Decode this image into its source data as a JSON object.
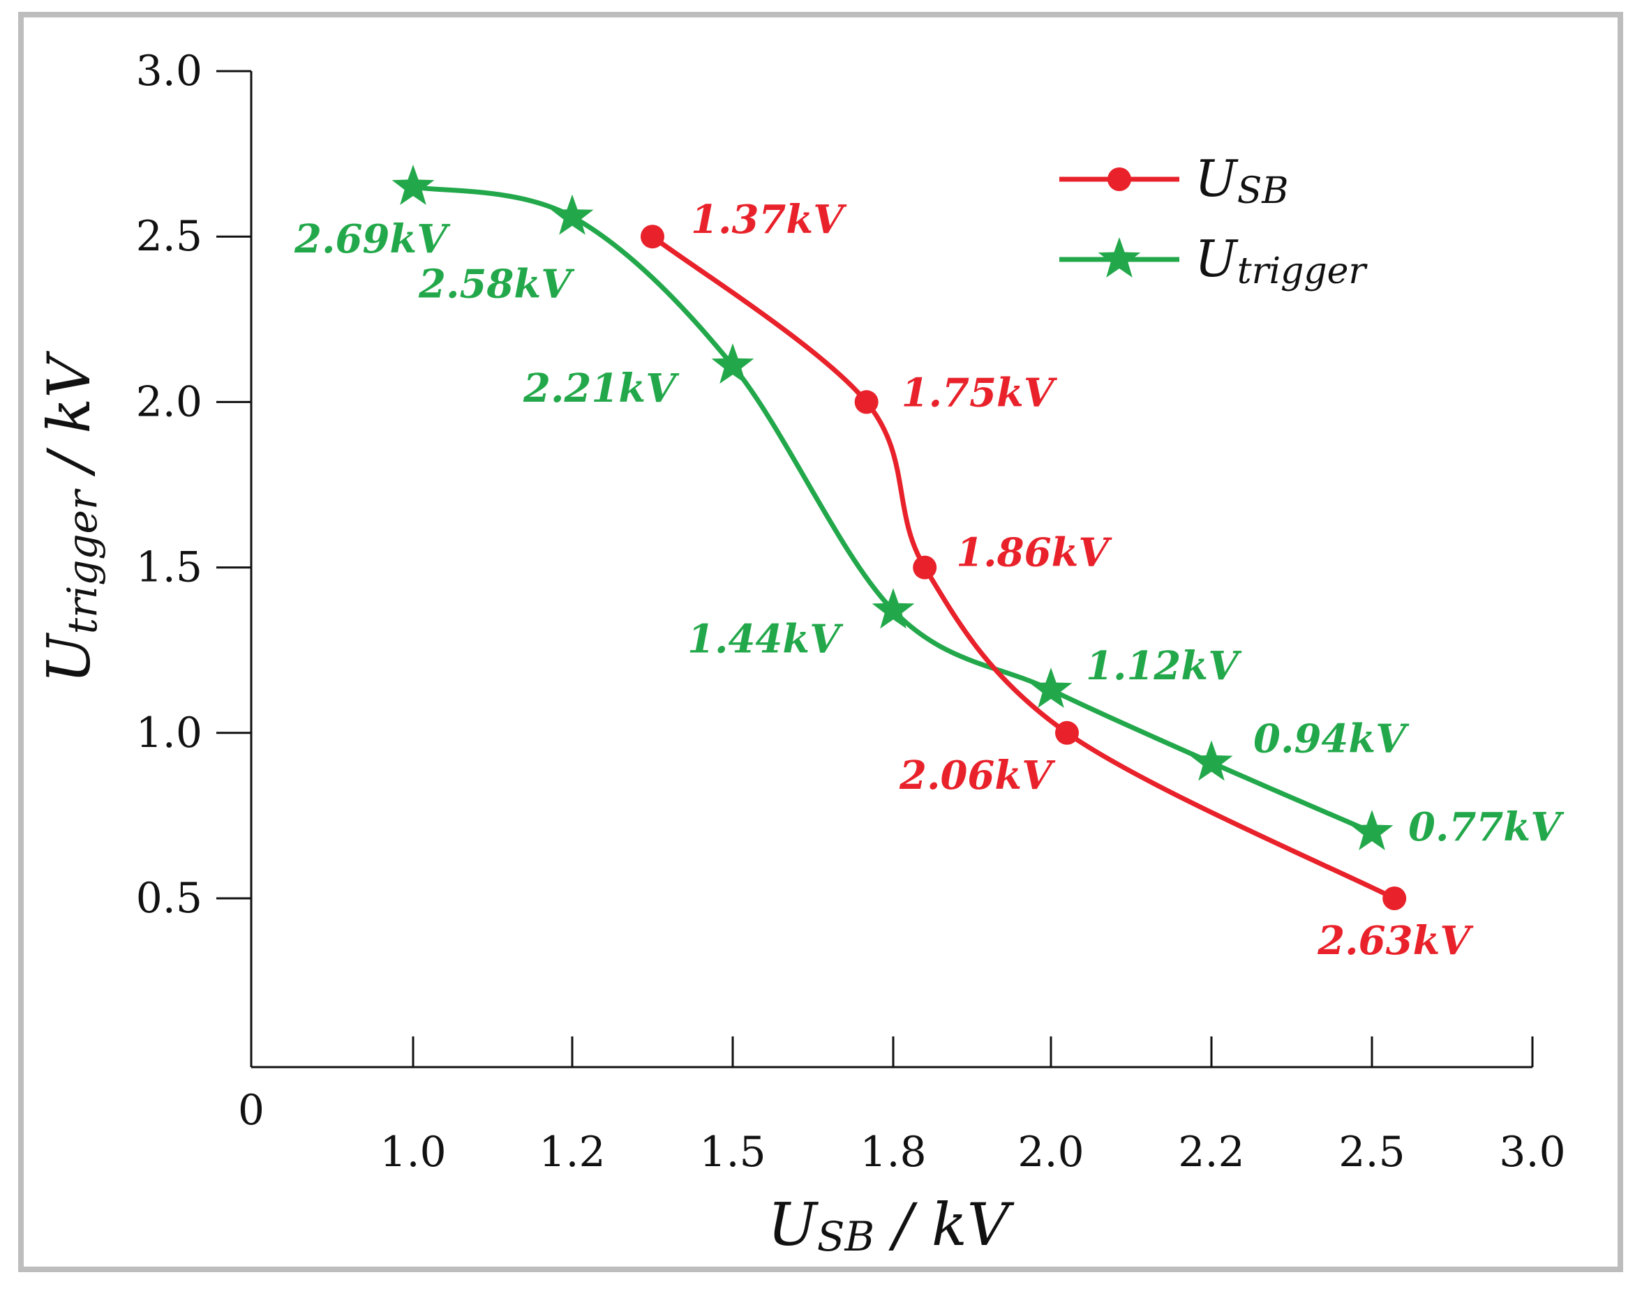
{
  "chart_data": {
    "type": "line",
    "title": "",
    "xlabel": {
      "main": "U",
      "sub": "SB",
      "unit": " / kV"
    },
    "ylabel": {
      "main": "U",
      "sub": "trigger",
      "unit": " / kV"
    },
    "origin_label": "0",
    "x_ticks": [
      {
        "value": 1.0,
        "label": "1.0"
      },
      {
        "value": 1.2,
        "label": "1.2"
      },
      {
        "value": 1.5,
        "label": "1.5"
      },
      {
        "value": 1.8,
        "label": "1.8"
      },
      {
        "value": 2.0,
        "label": "2.0"
      },
      {
        "value": 2.2,
        "label": "2.2"
      },
      {
        "value": 2.5,
        "label": "2.5"
      },
      {
        "value": 3.0,
        "label": "3.0"
      }
    ],
    "y_ticks": [
      {
        "value": 0.5,
        "label": "0.5"
      },
      {
        "value": 1.0,
        "label": "1.0"
      },
      {
        "value": 1.5,
        "label": "1.5"
      },
      {
        "value": 2.0,
        "label": "2.0"
      },
      {
        "value": 2.5,
        "label": "2.5"
      },
      {
        "value": 3.0,
        "label": "3.0"
      }
    ],
    "ylim": [
      0,
      3.0
    ],
    "series": [
      {
        "name": "USB",
        "legend_main": "U",
        "legend_sub": "SB",
        "color": "#e8212a",
        "marker": "circle",
        "points": [
          {
            "x": 1.35,
            "y": 2.5,
            "label": "1.37kV"
          },
          {
            "x": 1.75,
            "y": 2.0,
            "label": "1.75kV"
          },
          {
            "x": 1.84,
            "y": 1.5,
            "label": "1.86kV"
          },
          {
            "x": 2.02,
            "y": 1.0,
            "label": "2.06kV"
          },
          {
            "x": 2.57,
            "y": 0.5,
            "label": "2.63kV"
          }
        ]
      },
      {
        "name": "Utrigger",
        "legend_main": "U",
        "legend_sub": "trigger",
        "color": "#22a84a",
        "marker": "star",
        "points": [
          {
            "x": 1.0,
            "y": 2.65,
            "label": "2.69kV"
          },
          {
            "x": 1.2,
            "y": 2.56,
            "label": "2.58kV"
          },
          {
            "x": 1.5,
            "y": 2.11,
            "label": "2.21kV"
          },
          {
            "x": 1.8,
            "y": 1.37,
            "label": "1.44kV"
          },
          {
            "x": 2.0,
            "y": 1.13,
            "label": "1.12kV"
          },
          {
            "x": 2.2,
            "y": 0.91,
            "label": "0.94kV"
          },
          {
            "x": 2.5,
            "y": 0.7,
            "label": "0.77kV"
          }
        ]
      }
    ],
    "legend_position": "top-right"
  }
}
